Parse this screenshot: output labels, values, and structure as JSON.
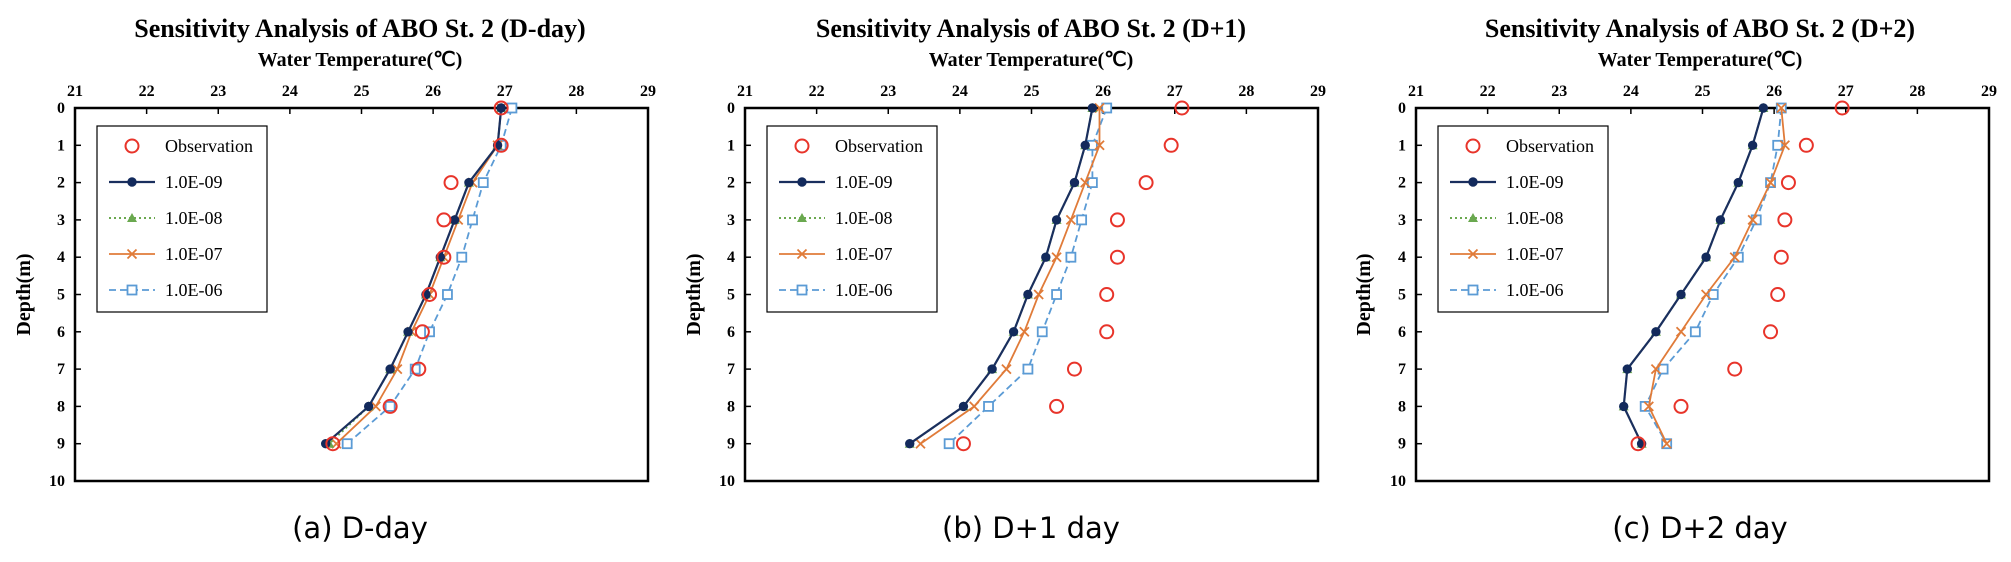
{
  "chart_data": [
    {
      "type": "line",
      "title": "Sensitivity Analysis of ABO St. 2 (D-day)",
      "xlabel": "Water Temperature(℃)",
      "ylabel": "Depth(m)",
      "caption": "(a) D-day",
      "xlim": [
        21,
        29
      ],
      "ylim": [
        0,
        10
      ],
      "y_inverted": true,
      "x_axis_position": "top",
      "legend_position": "top-left",
      "grid": false,
      "xticks": [
        "21",
        "22",
        "23",
        "24",
        "25",
        "26",
        "27",
        "28",
        "29"
      ],
      "yticks": [
        "0",
        "1",
        "2",
        "3",
        "4",
        "5",
        "6",
        "7",
        "8",
        "9",
        "10"
      ],
      "depth": [
        0,
        1,
        2,
        3,
        4,
        5,
        6,
        7,
        8,
        9
      ],
      "observation": {
        "name": "Observation",
        "x": [
          26.95,
          26.95,
          26.25,
          26.15,
          26.15,
          25.95,
          25.85,
          25.8,
          25.4,
          24.6
        ]
      },
      "series": [
        {
          "name": "1.0E-09",
          "x": [
            26.95,
            26.9,
            26.5,
            26.3,
            26.1,
            25.9,
            25.65,
            25.4,
            25.1,
            24.5
          ]
        },
        {
          "name": "1.0E-08",
          "x": [
            26.95,
            26.9,
            26.5,
            26.3,
            26.1,
            25.9,
            25.65,
            25.4,
            25.1,
            24.55
          ]
        },
        {
          "name": "1.0E-07",
          "x": [
            26.95,
            26.9,
            26.55,
            26.35,
            26.15,
            25.95,
            25.7,
            25.5,
            25.2,
            24.65
          ]
        },
        {
          "name": "1.0E-06",
          "x": [
            27.1,
            26.95,
            26.7,
            26.55,
            26.4,
            26.2,
            25.95,
            25.75,
            25.4,
            24.8
          ]
        }
      ]
    },
    {
      "type": "line",
      "title": "Sensitivity Analysis of ABO St. 2 (D+1)",
      "xlabel": "Water Temperature(℃)",
      "ylabel": "Depth(m)",
      "caption": "(b) D+1 day",
      "xlim": [
        21,
        29
      ],
      "ylim": [
        0,
        10
      ],
      "y_inverted": true,
      "x_axis_position": "top",
      "legend_position": "top-left",
      "grid": false,
      "xticks": [
        "21",
        "22",
        "23",
        "24",
        "25",
        "26",
        "27",
        "28",
        "29"
      ],
      "yticks": [
        "0",
        "1",
        "2",
        "3",
        "4",
        "5",
        "6",
        "7",
        "8",
        "9",
        "10"
      ],
      "depth": [
        0,
        1,
        2,
        3,
        4,
        5,
        6,
        7,
        8,
        9
      ],
      "observation": {
        "name": "Observation",
        "x": [
          27.1,
          26.95,
          26.6,
          26.2,
          26.2,
          26.05,
          26.05,
          25.6,
          25.35,
          24.05
        ]
      },
      "series": [
        {
          "name": "1.0E-09",
          "x": [
            25.85,
            25.75,
            25.6,
            25.35,
            25.2,
            24.95,
            24.75,
            24.45,
            24.05,
            23.3
          ]
        },
        {
          "name": "1.0E-08",
          "x": [
            25.85,
            25.75,
            25.6,
            25.35,
            25.2,
            24.95,
            24.75,
            24.45,
            24.05,
            23.3
          ]
        },
        {
          "name": "1.0E-07",
          "x": [
            25.95,
            25.95,
            25.75,
            25.55,
            25.35,
            25.1,
            24.9,
            24.65,
            24.2,
            23.45
          ]
        },
        {
          "name": "1.0E-06",
          "x": [
            26.05,
            25.85,
            25.85,
            25.7,
            25.55,
            25.35,
            25.15,
            24.95,
            24.4,
            23.85
          ]
        }
      ]
    },
    {
      "type": "line",
      "title": "Sensitivity Analysis of ABO St. 2 (D+2)",
      "xlabel": "Water Temperature(℃)",
      "ylabel": "Depth(m)",
      "caption": "(c) D+2 day",
      "xlim": [
        21,
        29
      ],
      "ylim": [
        0,
        10
      ],
      "y_inverted": true,
      "x_axis_position": "top",
      "legend_position": "top-left",
      "grid": false,
      "xticks": [
        "21",
        "22",
        "23",
        "24",
        "25",
        "26",
        "27",
        "28",
        "29"
      ],
      "yticks": [
        "0",
        "1",
        "2",
        "3",
        "4",
        "5",
        "6",
        "7",
        "8",
        "9",
        "10"
      ],
      "depth": [
        0,
        1,
        2,
        3,
        4,
        5,
        6,
        7,
        8,
        9
      ],
      "observation": {
        "name": "Observation",
        "x": [
          26.95,
          26.45,
          26.2,
          26.15,
          26.1,
          26.05,
          25.95,
          25.45,
          24.7,
          24.1
        ]
      },
      "series": [
        {
          "name": "1.0E-09",
          "x": [
            25.85,
            25.7,
            25.5,
            25.25,
            25.05,
            24.7,
            24.35,
            23.95,
            23.9,
            24.15
          ]
        },
        {
          "name": "1.0E-08",
          "x": [
            25.85,
            25.7,
            25.5,
            25.25,
            25.05,
            24.7,
            24.35,
            23.95,
            23.9,
            24.15
          ]
        },
        {
          "name": "1.0E-07",
          "x": [
            26.1,
            26.15,
            25.95,
            25.7,
            25.45,
            25.05,
            24.7,
            24.35,
            24.25,
            24.5
          ]
        },
        {
          "name": "1.0E-06",
          "x": [
            26.1,
            26.05,
            25.95,
            25.75,
            25.5,
            25.15,
            24.9,
            24.45,
            24.2,
            24.5
          ]
        }
      ]
    }
  ],
  "colors": {
    "observation": "#e8342a",
    "s1": "#1a2f5e",
    "s1_marker": "#132a5c",
    "s2": "#6aa84f",
    "s3": "#e07b39",
    "s4": "#5b9bd5"
  }
}
